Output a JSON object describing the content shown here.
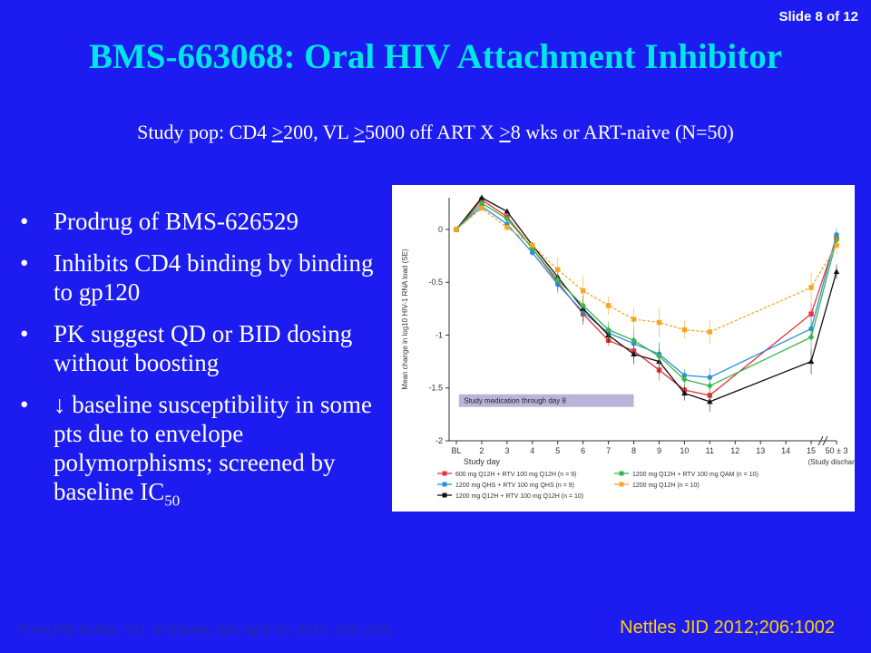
{
  "slide": {
    "number_label": "Slide 8 of 12",
    "title": "BMS-663068: Oral HIV Attachment Inhibitor",
    "subtitle": {
      "part1": "Study pop: CD4 ",
      "ge1": ">",
      "part2": "200, VL ",
      "ge2": ">",
      "part3": "5000 off ART X ",
      "ge3": ">",
      "part4": "8 wks or ART-naive (N=50)"
    },
    "bullets": [
      {
        "dot": "•",
        "text": "Prodrug of BMS-626529"
      },
      {
        "dot": "•",
        "text": "Inhibits CD4 binding by binding to gp120"
      },
      {
        "dot": "•",
        "text": "PK suggest QD or BID dosing without boosting"
      },
      {
        "dot": "•",
        "text": "↓ baseline susceptibility in some pts due to envelope polymorphisms; screened by baseline IC",
        "sub": "50"
      }
    ],
    "footer_left": "From RM Gulick, MD, at Atlanta, GA: April 10, 2013, IAS-USA.",
    "footer_right": "Nettles JID 2012;206:1002"
  },
  "chart_data": {
    "type": "line",
    "ylabel": "Mean change in log10 HIV-1 RNA load (SE)",
    "xlabel": "Study day",
    "categories": [
      "BL",
      "2",
      "3",
      "4",
      "5",
      "6",
      "7",
      "8",
      "9",
      "10",
      "11",
      "12",
      "13",
      "14",
      "15",
      "50 ± 3"
    ],
    "x_note": "(Study discharge)",
    "ylim": [
      -2,
      0.3
    ],
    "yticks": [
      0,
      -0.5,
      -1,
      -1.5,
      -2
    ],
    "ytick_labels": [
      "0",
      "-0.5",
      "-1",
      "-1.5",
      "-2"
    ],
    "annotation": "Study medication through day 8",
    "series": [
      {
        "name": "600 mg Q12H + RTV 100 mg Q12H (n = 9)",
        "color": "#e8333a",
        "marker": "square",
        "x": [
          0,
          1,
          2,
          3,
          4,
          5,
          6,
          7,
          8,
          9,
          10,
          14,
          15
        ],
        "y": [
          0,
          0.28,
          0.12,
          -0.18,
          -0.5,
          -0.8,
          -1.05,
          -1.15,
          -1.33,
          -1.52,
          -1.57,
          -0.8,
          -0.08
        ]
      },
      {
        "name": "1200 mg QHS + RTV 100 mg QHS (n = 9)",
        "color": "#2b8fd8",
        "marker": "circle",
        "x": [
          0,
          1,
          2,
          3,
          4,
          5,
          6,
          7,
          8,
          9,
          10,
          14,
          15
        ],
        "y": [
          0,
          0.22,
          0.05,
          -0.22,
          -0.52,
          -0.78,
          -0.98,
          -1.08,
          -1.18,
          -1.38,
          -1.4,
          -0.94,
          -0.05
        ]
      },
      {
        "name": "1200 mg Q12H + RTV 100 mg Q12H (n = 10)",
        "color": "#111111",
        "marker": "triangle",
        "x": [
          0,
          1,
          2,
          3,
          4,
          5,
          6,
          7,
          8,
          9,
          10,
          14,
          15
        ],
        "y": [
          0,
          0.3,
          0.17,
          -0.15,
          -0.45,
          -0.75,
          -1.0,
          -1.18,
          -1.25,
          -1.55,
          -1.63,
          -1.25,
          -0.4
        ]
      },
      {
        "name": "1200 mg Q12H + RTV 100 mg QAM (n = 10)",
        "color": "#3ab54a",
        "marker": "diamond",
        "x": [
          0,
          1,
          2,
          3,
          4,
          5,
          6,
          7,
          8,
          9,
          10,
          14,
          15
        ],
        "y": [
          0,
          0.25,
          0.1,
          -0.18,
          -0.48,
          -0.72,
          -0.95,
          -1.05,
          -1.2,
          -1.42,
          -1.48,
          -1.02,
          -0.1
        ]
      },
      {
        "name": "1200 mg Q12H (n = 10)",
        "color": "#f5a623",
        "marker": "square",
        "x": [
          0,
          1,
          2,
          3,
          4,
          5,
          6,
          7,
          8,
          9,
          10,
          14,
          15
        ],
        "y": [
          0,
          0.2,
          0.02,
          -0.15,
          -0.38,
          -0.58,
          -0.72,
          -0.85,
          -0.88,
          -0.95,
          -0.97,
          -0.55,
          -0.15
        ]
      }
    ]
  }
}
